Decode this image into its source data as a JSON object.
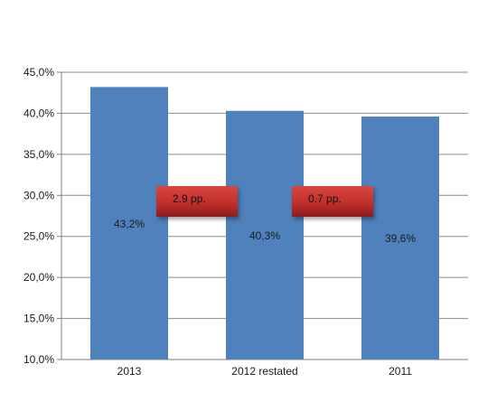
{
  "chart_data": {
    "type": "bar",
    "categories": [
      "2013",
      "2012 restated",
      "2011"
    ],
    "values": [
      43.2,
      40.3,
      39.6
    ],
    "data_labels": [
      "43,2%",
      "40,3%",
      "39,6%"
    ],
    "ylim": [
      10,
      45
    ],
    "y_ticks": [
      10,
      15,
      20,
      25,
      30,
      35,
      40,
      45
    ],
    "y_tick_labels": [
      "10,0%",
      "15,0%",
      "20,0%",
      "25,0%",
      "30,0%",
      "35,0%",
      "40,0%",
      "45,0%"
    ],
    "grid": true,
    "legend": "none",
    "annotations": [
      {
        "text": "2.9 pp.",
        "between": [
          "2013",
          "2012 restated"
        ]
      },
      {
        "text": "0.7 pp.",
        "between": [
          "2012 restated",
          "2011"
        ]
      }
    ],
    "colors": {
      "bar": "#4f81bd",
      "annotation_fill": "#c0302c",
      "annotation_dark": "#8e1c1a",
      "grid": "#8c8c8c",
      "axis": "#7f7f7f",
      "text": "#1a1a1a"
    }
  }
}
